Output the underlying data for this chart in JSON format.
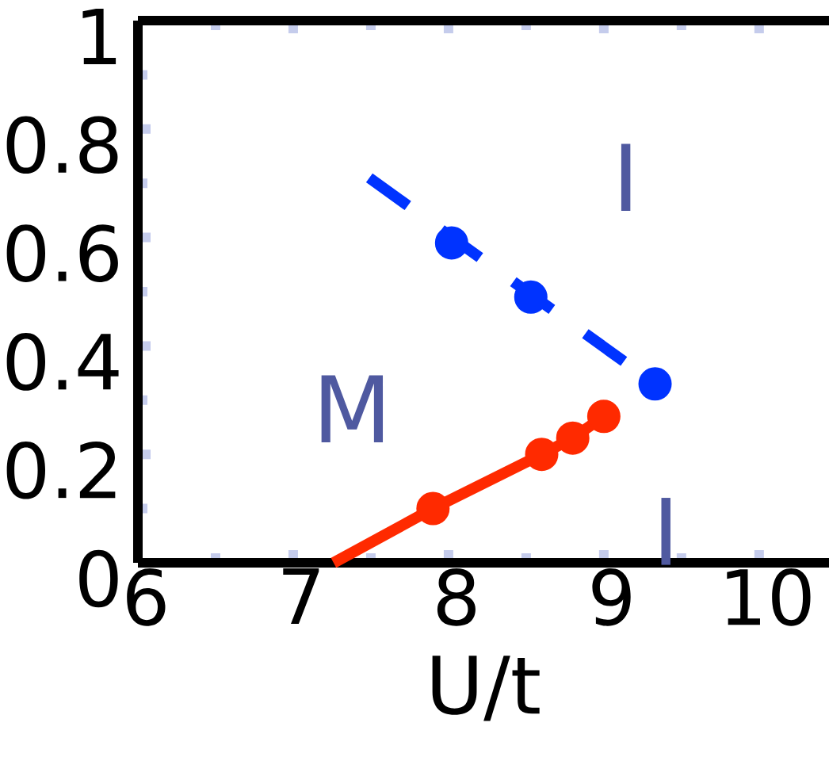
{
  "chart_data": {
    "type": "line",
    "xlabel": "U/t",
    "xlim": [
      6,
      10.45
    ],
    "xticks": [
      6,
      7,
      8,
      9,
      10
    ],
    "ylim": [
      0,
      1
    ],
    "yticks": [
      0,
      0.2,
      0.4,
      0.6,
      0.8,
      1
    ],
    "series": [
      {
        "color": "#0033ff",
        "line_style": "dashed",
        "marker": "none",
        "x": [
          7.49,
          9.33
        ],
        "values": [
          0.71,
          0.33
        ]
      },
      {
        "type": "scatter",
        "color": "#0033ff",
        "marker": "circle",
        "x": [
          8.02,
          8.53,
          9.33
        ],
        "values": [
          0.59,
          0.49,
          0.33
        ]
      },
      {
        "color": "#ff2a00",
        "line_style": "solid",
        "marker": "none",
        "x": [
          7.26,
          7.9,
          8.6,
          8.8,
          9.0
        ],
        "values": [
          0,
          0.1,
          0.2,
          0.23,
          0.27
        ]
      },
      {
        "type": "scatter",
        "color": "#ff2a00",
        "marker": "circle",
        "x": [
          7.9,
          8.6,
          8.8,
          9.0
        ],
        "values": [
          0.1,
          0.2,
          0.23,
          0.27
        ]
      }
    ],
    "annotations": [
      "I",
      "M",
      "I"
    ]
  }
}
